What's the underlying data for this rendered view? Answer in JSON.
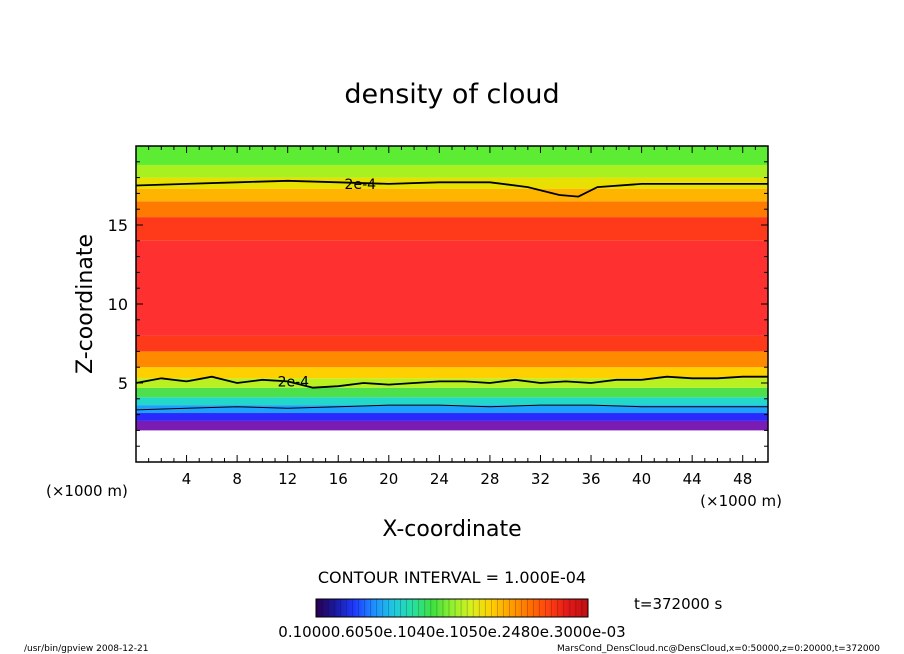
{
  "chart_data": {
    "type": "heatmap",
    "title": "density of cloud",
    "xlabel": "X-coordinate",
    "ylabel": "Z-coordinate",
    "x_unit_left": "(×1000 m)",
    "x_unit_right": "(×1000 m)",
    "xlim": [
      0,
      50
    ],
    "ylim": [
      0,
      20
    ],
    "x_ticks": [
      4,
      8,
      12,
      16,
      20,
      24,
      28,
      32,
      36,
      40,
      44,
      48
    ],
    "y_ticks": [
      5,
      10,
      15
    ],
    "contour_interval": "CONTOUR INTERVAL = 1.000E-04",
    "time_label": "t=372000 s",
    "colorbar_labels": "0.10000.6050e.1040e.1050e.2480e.3000e-03",
    "footer_left": "/usr/bin/gpview   2008-12-21",
    "footer_right": "MarsCond_DensCloud.nc@DensCloud,x=0:50000,z=0:20000,t=372000",
    "contours": [
      {
        "label": "2e-4",
        "label_at": [
          16.5,
          17.6
        ],
        "points": [
          [
            0,
            17.5
          ],
          [
            4,
            17.6
          ],
          [
            8,
            17.7
          ],
          [
            12,
            17.8
          ],
          [
            16,
            17.7
          ],
          [
            20,
            17.6
          ],
          [
            24,
            17.7
          ],
          [
            28,
            17.7
          ],
          [
            31,
            17.4
          ],
          [
            33.5,
            16.9
          ],
          [
            35,
            16.8
          ],
          [
            36.5,
            17.4
          ],
          [
            40,
            17.6
          ],
          [
            44,
            17.6
          ],
          [
            48,
            17.6
          ],
          [
            50,
            17.6
          ]
        ]
      },
      {
        "label": "2e-4",
        "label_at": [
          11.2,
          5.1
        ],
        "points": [
          [
            0,
            5.0
          ],
          [
            2,
            5.3
          ],
          [
            4,
            5.1
          ],
          [
            6,
            5.4
          ],
          [
            8,
            5.0
          ],
          [
            10,
            5.2
          ],
          [
            12,
            5.1
          ],
          [
            14,
            4.7
          ],
          [
            16,
            4.8
          ],
          [
            18,
            5.0
          ],
          [
            20,
            4.9
          ],
          [
            22,
            5.0
          ],
          [
            24,
            5.1
          ],
          [
            26,
            5.1
          ],
          [
            28,
            5.0
          ],
          [
            30,
            5.2
          ],
          [
            32,
            5.0
          ],
          [
            34,
            5.1
          ],
          [
            36,
            5.0
          ],
          [
            38,
            5.2
          ],
          [
            40,
            5.2
          ],
          [
            42,
            5.4
          ],
          [
            44,
            5.3
          ],
          [
            46,
            5.3
          ],
          [
            48,
            5.4
          ],
          [
            50,
            5.4
          ]
        ]
      },
      {
        "label": "",
        "label_at": null,
        "points": [
          [
            0,
            3.3
          ],
          [
            4,
            3.4
          ],
          [
            8,
            3.5
          ],
          [
            12,
            3.4
          ],
          [
            16,
            3.5
          ],
          [
            20,
            3.6
          ],
          [
            24,
            3.6
          ],
          [
            28,
            3.5
          ],
          [
            32,
            3.6
          ],
          [
            36,
            3.6
          ],
          [
            40,
            3.5
          ],
          [
            44,
            3.5
          ],
          [
            48,
            3.5
          ],
          [
            50,
            3.5
          ]
        ]
      }
    ],
    "layers": [
      {
        "from": 2.0,
        "to": 2.6,
        "color": "#7a1bb3"
      },
      {
        "from": 2.6,
        "to": 3.1,
        "color": "#2a2aff"
      },
      {
        "from": 3.1,
        "to": 3.6,
        "color": "#1ea0ff"
      },
      {
        "from": 3.6,
        "to": 4.1,
        "color": "#22d8c8"
      },
      {
        "from": 4.1,
        "to": 4.7,
        "color": "#4ee04a"
      },
      {
        "from": 4.7,
        "to": 5.3,
        "color": "#b8f020"
      },
      {
        "from": 5.3,
        "to": 6.0,
        "color": "#ffd000"
      },
      {
        "from": 6.0,
        "to": 7.0,
        "color": "#ff8a00"
      },
      {
        "from": 7.0,
        "to": 8.0,
        "color": "#ff3a1a"
      },
      {
        "from": 8.0,
        "to": 14.0,
        "color": "#ff3030"
      },
      {
        "from": 14.0,
        "to": 15.5,
        "color": "#ff3a1a"
      },
      {
        "from": 15.5,
        "to": 16.5,
        "color": "#ff7a00"
      },
      {
        "from": 16.5,
        "to": 17.3,
        "color": "#ffb400"
      },
      {
        "from": 17.3,
        "to": 18.0,
        "color": "#e8e000"
      },
      {
        "from": 18.0,
        "to": 18.8,
        "color": "#a8f020"
      },
      {
        "from": 18.8,
        "to": 20.0,
        "color": "#5cec34"
      }
    ],
    "colorbar_colors": [
      "#2a0050",
      "#1a1aa0",
      "#1e3cff",
      "#1e90ff",
      "#20c8e0",
      "#28e0a0",
      "#40e040",
      "#90f030",
      "#d8f020",
      "#ffd000",
      "#ffa000",
      "#ff7000",
      "#ff4010",
      "#e01818",
      "#c01010"
    ]
  }
}
